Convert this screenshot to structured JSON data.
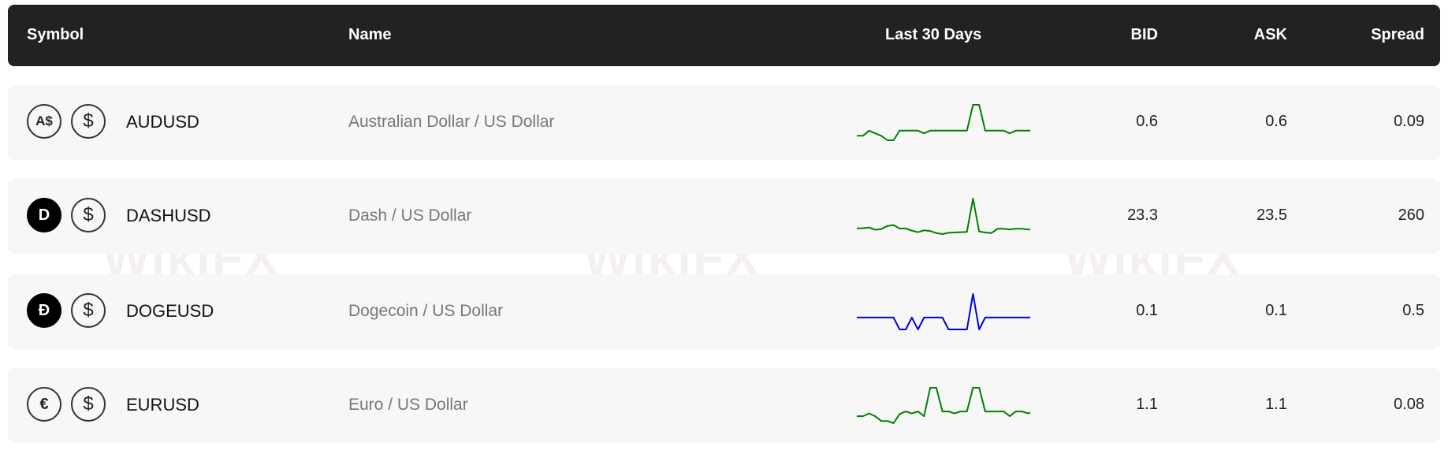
{
  "header": {
    "symbol": "Symbol",
    "name": "Name",
    "last30": "Last 30 Days",
    "bid": "BID",
    "ask": "ASK",
    "spread": "Spread"
  },
  "watermark": "WikiFX",
  "rows": [
    {
      "symbol": "AUDUSD",
      "name": "Australian Dollar / US Dollar",
      "base_icon": "A$",
      "base_icon_name": "aud-icon",
      "quote_icon": "$",
      "bid": "0.6",
      "ask": "0.6",
      "spread": "0.09",
      "color": "#008000",
      "spark": [
        -185,
        -185,
        -168,
        -177,
        -185,
        -200,
        -200,
        -168,
        -168,
        -168,
        -168,
        -177,
        -168,
        -168,
        -168,
        -168,
        -168,
        -168,
        -168,
        -82,
        -82,
        -168,
        -168,
        -168,
        -168,
        -177,
        -168,
        -168,
        -168,
        -168
      ]
    },
    {
      "symbol": "DASHUSD",
      "name": "Dash / US Dollar",
      "base_icon": "D",
      "base_icon_name": "dash-icon",
      "quote_icon": "$",
      "bid": "23.3",
      "ask": "23.5",
      "spread": "260",
      "color": "#008000",
      "spark": [
        -548,
        -547,
        -545,
        -552,
        -550,
        -540,
        -537,
        -548,
        -548,
        -555,
        -560,
        -554,
        -556,
        -563,
        -566,
        -562,
        -561,
        -560,
        -559,
        -452,
        -558,
        -561,
        -563,
        -549,
        -549,
        -551,
        -549,
        -549,
        -551,
        -552
      ]
    },
    {
      "symbol": "DOGEUSD",
      "name": "Dogecoin / US Dollar",
      "base_icon": "Đ",
      "base_icon_name": "dogecoin-icon",
      "quote_icon": "$",
      "bid": "0.1",
      "ask": "0.1",
      "spread": "0.5",
      "color": "#0000dd",
      "spark": [
        -887,
        -887,
        -887,
        -887,
        -887,
        -887,
        -887,
        -930,
        -930,
        -887,
        -930,
        -887,
        -887,
        -887,
        -887,
        -930,
        -930,
        -930,
        -930,
        -802,
        -930,
        -887,
        -887,
        -887,
        -887,
        -887,
        -887,
        -887,
        -887,
        -887
      ]
    },
    {
      "symbol": "EURUSD",
      "name": "Euro / US Dollar",
      "base_icon": "€",
      "base_icon_name": "euro-icon",
      "quote_icon": "$",
      "bid": "1.1",
      "ask": "1.1",
      "spread": "0.08",
      "color": "#008000",
      "spark": [
        -1265,
        -1265,
        -1255,
        -1265,
        -1282,
        -1282,
        -1290,
        -1257,
        -1248,
        -1255,
        -1248,
        -1265,
        -1163,
        -1163,
        -1248,
        -1248,
        -1255,
        -1248,
        -1248,
        -1163,
        -1163,
        -1248,
        -1248,
        -1248,
        -1248,
        -1265,
        -1248,
        -1248,
        -1255,
        -1248
      ]
    }
  ]
}
